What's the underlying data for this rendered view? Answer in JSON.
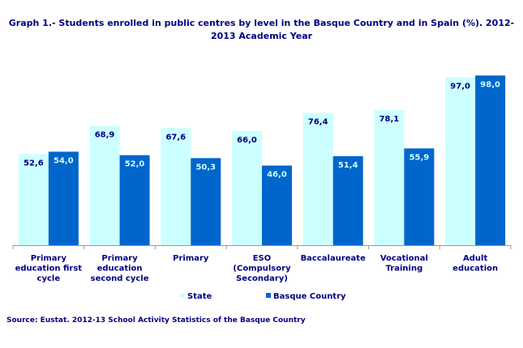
{
  "chart_data": {
    "type": "bar",
    "title": "Graph 1.- Students enrolled in public centres by level in the Basque Country and in Spain (%). 2012-2013 Academic Year",
    "categories": [
      [
        "Primary",
        "education first",
        "cycle"
      ],
      [
        "Primary",
        "education",
        "second cycle"
      ],
      [
        "Primary"
      ],
      [
        "ESO",
        "(Compulsory",
        "Secondary)"
      ],
      [
        "Baccalaureate"
      ],
      [
        "Vocational",
        "Training"
      ],
      [
        "Adult",
        "education"
      ]
    ],
    "series": [
      {
        "name": "State",
        "values": [
          52.6,
          68.9,
          67.6,
          66.0,
          76.4,
          78.1,
          97.0
        ],
        "labels": [
          "52,6",
          "68,9",
          "67,6",
          "66,0",
          "76,4",
          "78,1",
          "97,0"
        ],
        "color": "#ccffff",
        "label_color": "#000080"
      },
      {
        "name": "Basque Country",
        "values": [
          54.0,
          52.0,
          50.3,
          46.0,
          51.4,
          55.9,
          98.0
        ],
        "labels": [
          "54,0",
          "52,0",
          "50,3",
          "46,0",
          "51,4",
          "55,9",
          "98,0"
        ],
        "color": "#0066cc",
        "label_color": "#ccffff"
      }
    ],
    "ylim": [
      0,
      100
    ],
    "grid": false,
    "legend_position": "bottom"
  },
  "source": "Source: Eustat. 2012-13 School Activity Statistics of the Basque Country"
}
